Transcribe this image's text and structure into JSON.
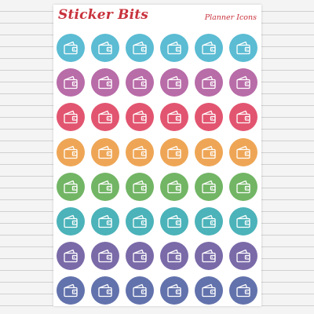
{
  "sheet": {
    "brand": "Sticker Bits",
    "subtitle": "Planner Icons"
  },
  "icon": "wallet-icon",
  "rows": [
    {
      "color": "#5bbcd3",
      "count": 6
    },
    {
      "color": "#b86ca8",
      "count": 6
    },
    {
      "color": "#e25570",
      "count": 6
    },
    {
      "color": "#eea656",
      "count": 6
    },
    {
      "color": "#72b565",
      "count": 6
    },
    {
      "color": "#4bb3b9",
      "count": 6
    },
    {
      "color": "#7a6aa8",
      "count": 6
    },
    {
      "color": "#6272ac",
      "count": 6
    }
  ]
}
